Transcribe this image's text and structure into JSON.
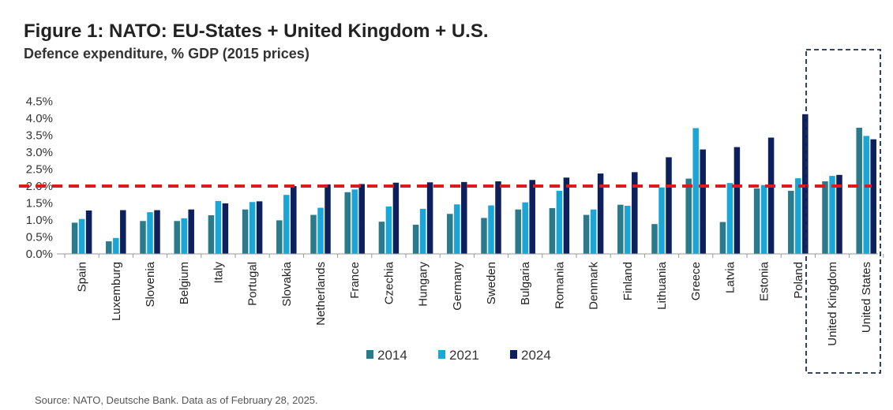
{
  "title": "Figure 1: NATO: EU-States + United Kingdom + U.S.",
  "subtitle": "Defence expenditure, % GDP (2015 prices)",
  "source": "Source: NATO, Deutsche Bank. Data as of February 28, 2025.",
  "colors": {
    "s2014": "#2b7a8c",
    "s2021": "#1aa6d6",
    "s2024": "#0d1f5c",
    "target": "#e0191e",
    "highlight_box": "#1d2e4f"
  },
  "chart_data": {
    "type": "bar",
    "title": "Figure 1: NATO: EU-States + United Kingdom + U.S.",
    "ylabel": "Defence expenditure, % GDP (2015 prices)",
    "xlabel": "",
    "ylim": [
      0,
      4.5
    ],
    "yticks": [
      "0.0%",
      "0.5%",
      "1.0%",
      "1.5%",
      "2.0%",
      "2.5%",
      "3.0%",
      "3.5%",
      "4.0%",
      "4.5%"
    ],
    "target_line": 2.0,
    "legend_position": "bottom",
    "highlighted_categories": [
      "United Kingdom",
      "United States"
    ],
    "categories": [
      "Spain",
      "Luxemburg",
      "Slovenia",
      "Belgium",
      "Italy",
      "Portugal",
      "Slovakia",
      "Netherlands",
      "France",
      "Czechia",
      "Hungary",
      "Germany",
      "Sweden",
      "Bulgaria",
      "Romania",
      "Denmark",
      "Finland",
      "Lithuania",
      "Greece",
      "Latvia",
      "Estonia",
      "Poland",
      "United Kingdom",
      "United States"
    ],
    "series": [
      {
        "name": "2014",
        "values": [
          0.92,
          0.37,
          0.97,
          0.97,
          1.14,
          1.31,
          0.99,
          1.15,
          1.82,
          0.95,
          0.86,
          1.18,
          1.06,
          1.31,
          1.35,
          1.15,
          1.45,
          0.88,
          2.22,
          0.94,
          1.93,
          1.86,
          2.14,
          3.72
        ]
      },
      {
        "name": "2021",
        "values": [
          1.03,
          0.47,
          1.23,
          1.05,
          1.56,
          1.53,
          1.74,
          1.36,
          1.9,
          1.4,
          1.33,
          1.46,
          1.43,
          1.52,
          1.86,
          1.31,
          1.42,
          1.96,
          3.71,
          2.09,
          2.03,
          2.23,
          2.3,
          3.48
        ]
      },
      {
        "name": "2024",
        "values": [
          1.28,
          1.29,
          1.29,
          1.31,
          1.49,
          1.55,
          2.0,
          2.05,
          2.06,
          2.1,
          2.11,
          2.12,
          2.14,
          2.18,
          2.25,
          2.37,
          2.41,
          2.85,
          3.08,
          3.15,
          3.43,
          4.12,
          2.33,
          3.38
        ]
      }
    ]
  }
}
